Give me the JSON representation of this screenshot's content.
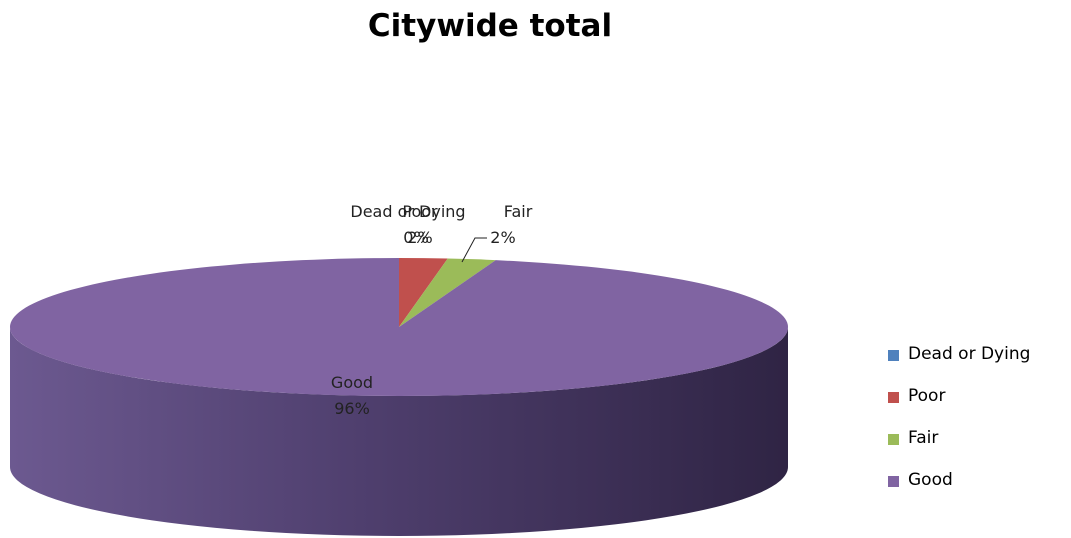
{
  "chart_data": {
    "type": "pie",
    "title": "Citywide total",
    "categories": [
      "Dead or Dying",
      "Poor",
      "Fair",
      "Good"
    ],
    "values": [
      0,
      2,
      2,
      96
    ],
    "value_labels": [
      "0%",
      "2%",
      "2%",
      "96%"
    ],
    "colors": [
      "#4f81bd",
      "#c0504d",
      "#9bbb59",
      "#8064a2"
    ],
    "legend_position": "right",
    "three_d": true
  }
}
